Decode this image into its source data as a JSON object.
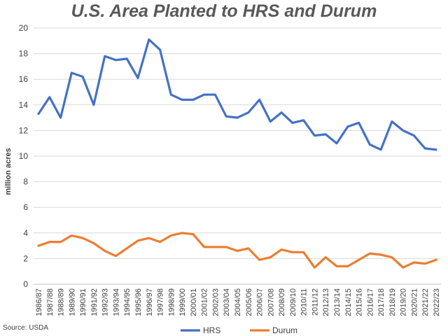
{
  "chart_data": {
    "type": "line",
    "title": "U.S. Area Planted to HRS and Durum",
    "ylabel": "million acres",
    "xlabel": "",
    "ylim": [
      0,
      20
    ],
    "yticks": [
      0,
      2,
      4,
      6,
      8,
      10,
      12,
      14,
      16,
      18,
      20
    ],
    "grid": "horizontal",
    "legend_position": "bottom",
    "categories": [
      "1986/87",
      "1987/88",
      "1988/89",
      "1989/90",
      "1990/91",
      "1991/92",
      "1992/93",
      "1993/94",
      "1994/95",
      "1995/96",
      "1996/97",
      "1997/98",
      "1998/99",
      "1999/00",
      "2000/01",
      "2001/02",
      "2002/03",
      "2003/04",
      "2004/05",
      "2005/06",
      "2006/07",
      "2007/08",
      "2008/09",
      "2009/10",
      "2010/11",
      "2011/12",
      "2012/13",
      "2013/14",
      "2014/15",
      "2015/16",
      "2016/17",
      "2017/18",
      "2018/19",
      "2019/20",
      "2020/21",
      "2021/22",
      "2022/23"
    ],
    "series": [
      {
        "name": "HRS",
        "color": "#4472C4",
        "values": [
          13.3,
          14.6,
          13.0,
          16.5,
          16.2,
          14.0,
          17.8,
          17.5,
          17.6,
          16.1,
          19.1,
          18.3,
          14.8,
          14.4,
          14.4,
          14.8,
          14.8,
          13.1,
          13.0,
          13.4,
          14.4,
          12.7,
          13.4,
          12.6,
          12.8,
          11.6,
          11.7,
          11.0,
          12.3,
          12.6,
          10.9,
          10.5,
          12.7,
          12.0,
          11.6,
          10.6,
          10.5
        ]
      },
      {
        "name": "Durum",
        "color": "#ED7D31",
        "values": [
          3.0,
          3.3,
          3.3,
          3.8,
          3.6,
          3.2,
          2.6,
          2.2,
          2.8,
          3.4,
          3.6,
          3.3,
          3.8,
          4.0,
          3.9,
          2.9,
          2.9,
          2.9,
          2.6,
          2.8,
          1.9,
          2.1,
          2.7,
          2.5,
          2.5,
          1.3,
          2.1,
          1.4,
          1.4,
          1.9,
          2.4,
          2.3,
          2.1,
          1.3,
          1.7,
          1.6,
          1.9
        ]
      }
    ]
  },
  "source": "Source: USDA"
}
